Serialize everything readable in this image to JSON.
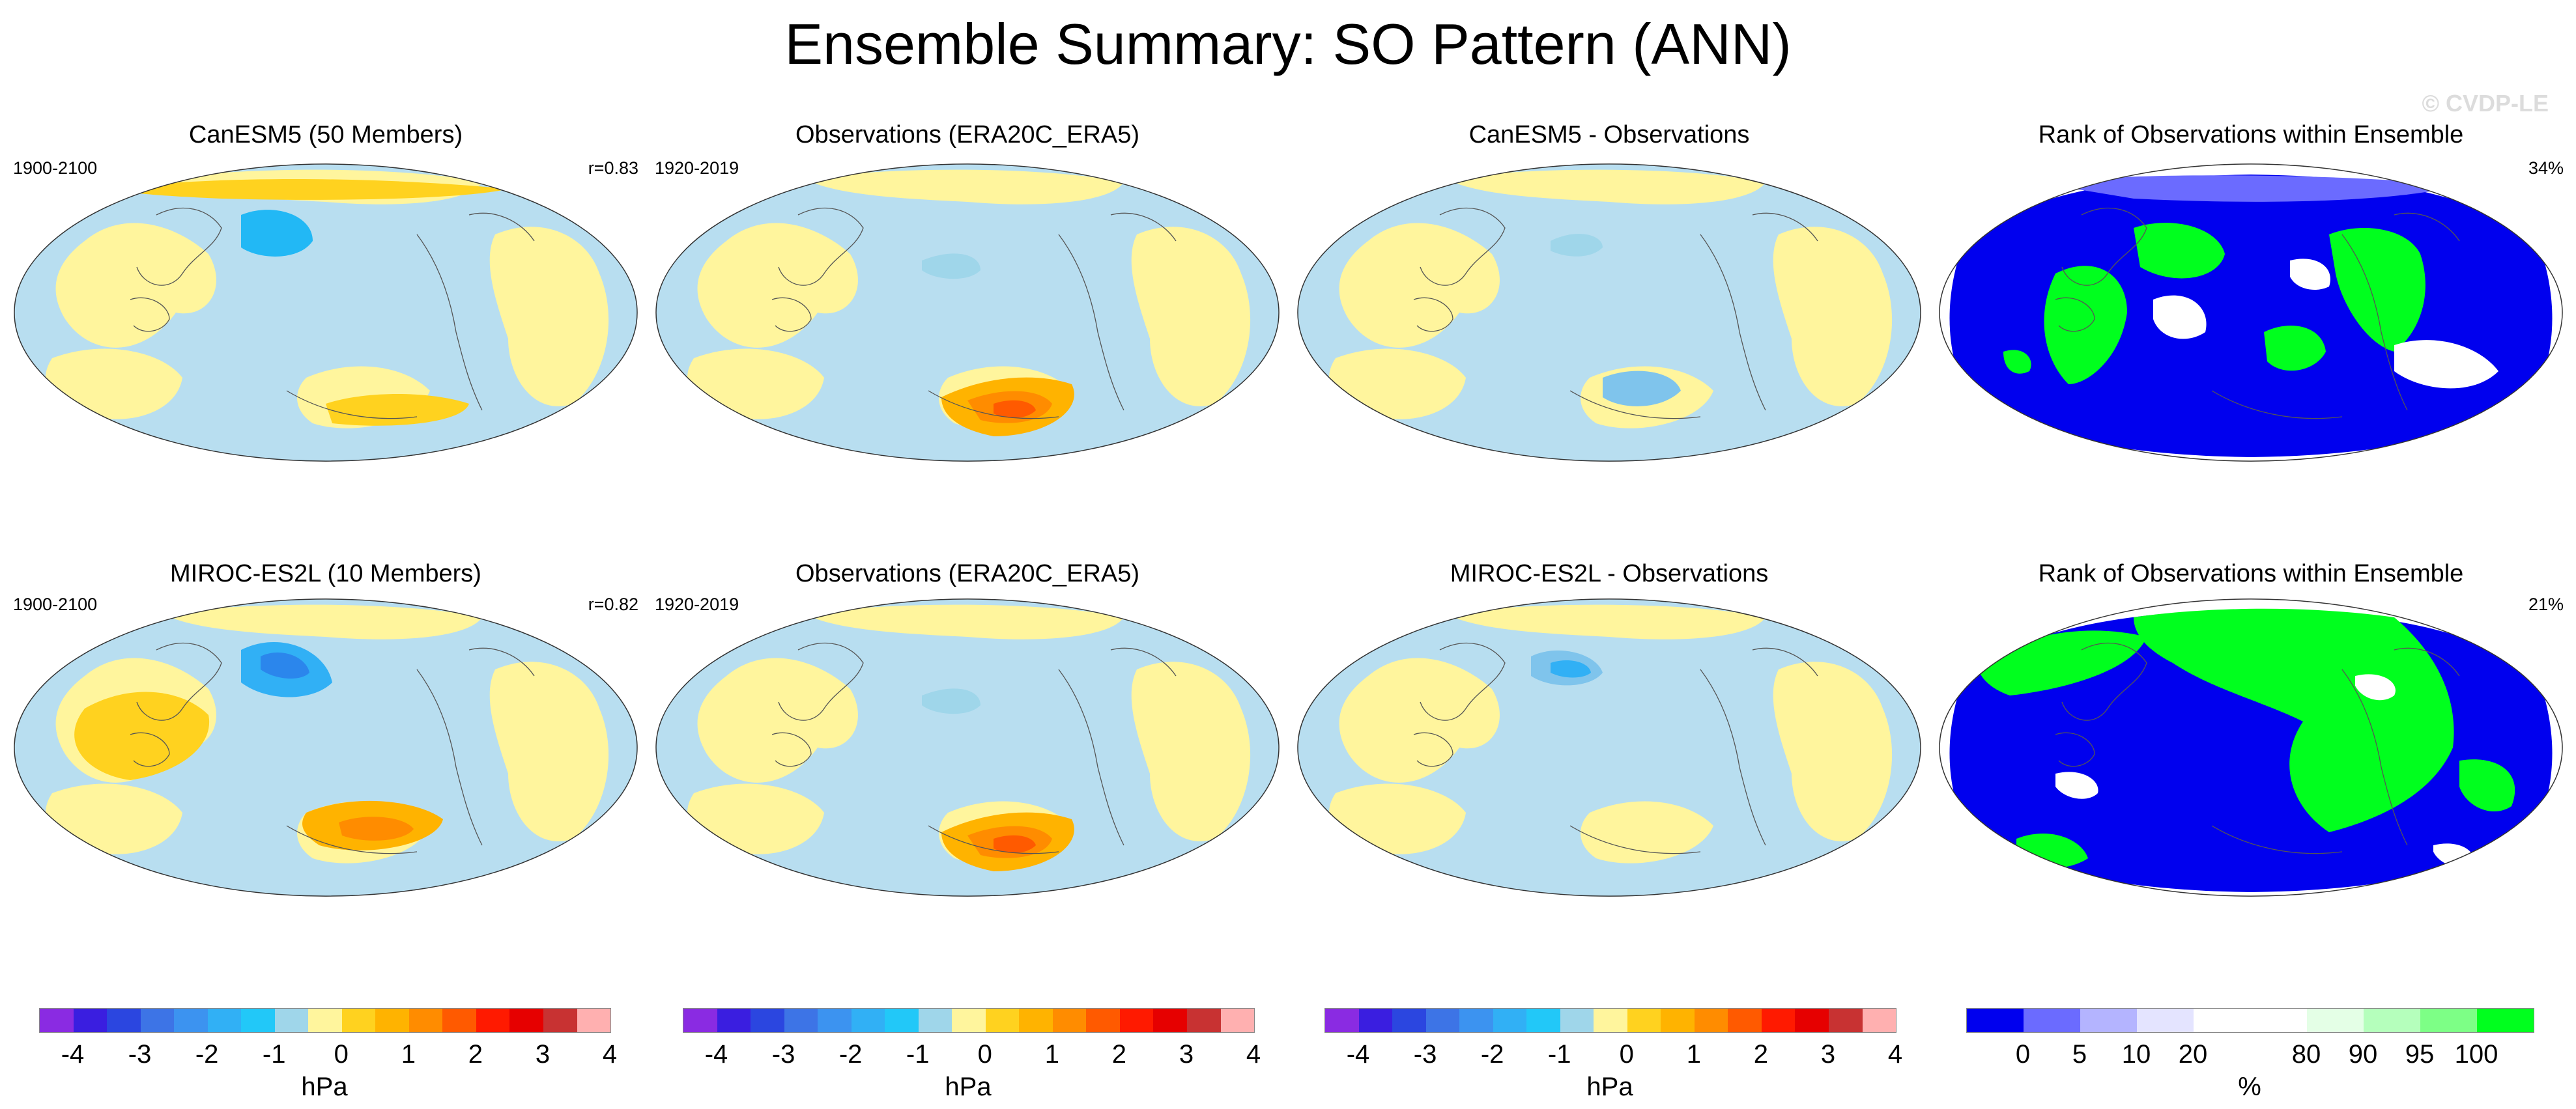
{
  "title": "Ensemble Summary: SO Pattern (ANN)",
  "watermark": "© CVDP-LE",
  "colors": {
    "ocean_blue": "#b8def0",
    "land_yellow": "#fff59d",
    "rank_blue": "#0000ee",
    "rank_green": "#00ff1e"
  },
  "rows": [
    {
      "panels": [
        {
          "title": "CanESM5 (50 Members)",
          "left_label": "1900-2100",
          "right_label": "r=0.83",
          "kind": "model"
        },
        {
          "title": "Observations (ERA20C_ERA5)",
          "left_label": "1920-2019",
          "right_label": "",
          "kind": "obs"
        },
        {
          "title": "CanESM5 - Observations",
          "left_label": "",
          "right_label": "",
          "kind": "diff"
        },
        {
          "title": "Rank of Observations within Ensemble",
          "left_label": "",
          "right_label": "34%",
          "kind": "rank"
        }
      ]
    },
    {
      "panels": [
        {
          "title": "MIROC-ES2L (10 Members)",
          "left_label": "1900-2100",
          "right_label": "r=0.82",
          "kind": "model"
        },
        {
          "title": "Observations (ERA20C_ERA5)",
          "left_label": "1920-2019",
          "right_label": "",
          "kind": "obs"
        },
        {
          "title": "MIROC-ES2L - Observations",
          "left_label": "",
          "right_label": "",
          "kind": "diff"
        },
        {
          "title": "Rank of Observations within Ensemble",
          "left_label": "",
          "right_label": "21%",
          "kind": "rank"
        }
      ]
    }
  ],
  "colorbars": [
    {
      "ticks": [
        "-4",
        "-3",
        "-2",
        "-1",
        "0",
        "1",
        "2",
        "3",
        "4"
      ],
      "unit": "hPa",
      "colors": [
        "#8a2be2",
        "#3a1ee0",
        "#2b46e0",
        "#3d74e6",
        "#3c93f0",
        "#31b0f5",
        "#22c8f8",
        "#9fd6ea",
        "#fff59d",
        "#ffd21f",
        "#ffb300",
        "#ff8c00",
        "#ff5a00",
        "#ff1a00",
        "#e60000",
        "#c83232",
        "#ffb0b0"
      ]
    },
    {
      "ticks": [
        "-4",
        "-3",
        "-2",
        "-1",
        "0",
        "1",
        "2",
        "3",
        "4"
      ],
      "unit": "hPa",
      "colors": [
        "#8a2be2",
        "#3a1ee0",
        "#2b46e0",
        "#3d74e6",
        "#3c93f0",
        "#31b0f5",
        "#22c8f8",
        "#9fd6ea",
        "#fff59d",
        "#ffd21f",
        "#ffb300",
        "#ff8c00",
        "#ff5a00",
        "#ff1a00",
        "#e60000",
        "#c83232",
        "#ffb0b0"
      ]
    },
    {
      "ticks": [
        "-4",
        "-3",
        "-2",
        "-1",
        "0",
        "1",
        "2",
        "3",
        "4"
      ],
      "unit": "hPa",
      "colors": [
        "#8a2be2",
        "#3a1ee0",
        "#2b46e0",
        "#3d74e6",
        "#3c93f0",
        "#31b0f5",
        "#22c8f8",
        "#9fd6ea",
        "#fff59d",
        "#ffd21f",
        "#ffb300",
        "#ff8c00",
        "#ff5a00",
        "#ff1a00",
        "#e60000",
        "#c83232",
        "#ffb0b0"
      ]
    },
    {
      "ticks": [
        "0",
        "5",
        "10",
        "20",
        "80",
        "90",
        "95",
        "100"
      ],
      "unit": "%",
      "colors": [
        "#0000ee",
        "#6b6bff",
        "#b4b4ff",
        "#e4e4ff",
        "#ffffff",
        "#ffffff",
        "#e4ffe6",
        "#b5ffbc",
        "#7dff86",
        "#00ff1e"
      ]
    }
  ]
}
